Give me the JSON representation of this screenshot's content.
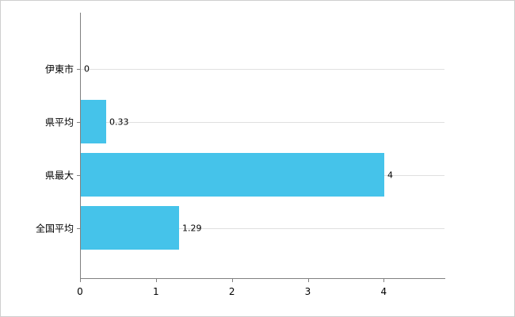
{
  "chart_data": {
    "type": "bar",
    "orientation": "horizontal",
    "title": "",
    "xlabel": "",
    "ylabel": "",
    "categories": [
      "伊東市",
      "県平均",
      "県最大",
      "全国平均"
    ],
    "values": [
      0,
      0.33,
      4,
      1.29
    ],
    "value_labels": [
      "0",
      "0.33",
      "4",
      "1.29"
    ],
    "xlim": [
      0,
      4.8
    ],
    "x_ticks": [
      "0",
      "1",
      "2",
      "3",
      "4"
    ],
    "x_tick_values": [
      0,
      1,
      2,
      3,
      4
    ],
    "grid": true,
    "legend": "none",
    "bar_color": "#45c3ea",
    "axis_color": "#808080",
    "grid_color": "#e0e0e0",
    "background_color": "#ffffff"
  }
}
